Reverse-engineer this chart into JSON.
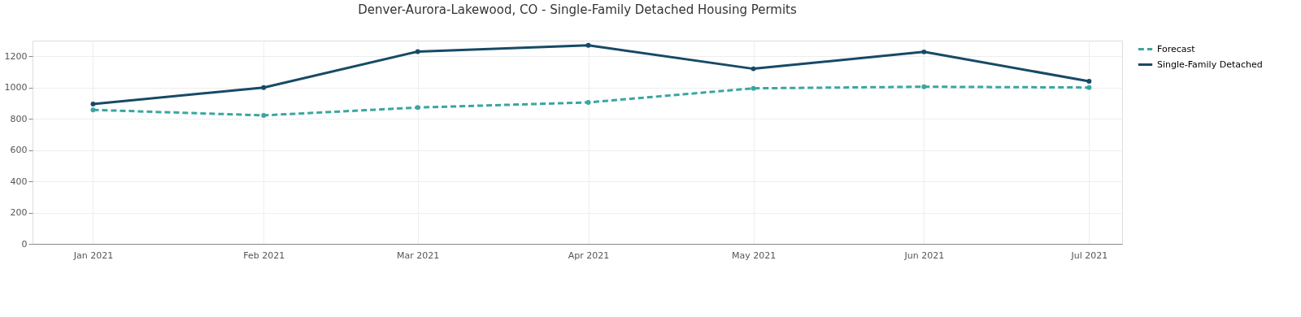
{
  "chart_data": {
    "type": "line",
    "title": "Denver-Aurora-Lakewood, CO - Single-Family Detached Housing Permits",
    "x": [
      "2021-01",
      "2021-02",
      "2021-03",
      "2021-04",
      "2021-05",
      "2021-06",
      "2021-07"
    ],
    "series": [
      {
        "name": "Forecast",
        "color": "#3aa6a0",
        "line_style": "dashed",
        "values": [
          857,
          822,
          872,
          905,
          995,
          1005,
          1000
        ]
      },
      {
        "name": "Single-Family Detached",
        "color": "#174a66",
        "line_style": "solid",
        "values": [
          895,
          1000,
          1230,
          1270,
          1120,
          1228,
          1040
        ]
      }
    ],
    "xlim": [
      "2020-12-21",
      "2021-07-07"
    ],
    "xticks": [
      {
        "value": "2021-01",
        "label": "Jan 2021"
      },
      {
        "value": "2021-02",
        "label": "Feb 2021"
      },
      {
        "value": "2021-03",
        "label": "Mar 2021"
      },
      {
        "value": "2021-04",
        "label": "Apr 2021"
      },
      {
        "value": "2021-05",
        "label": "May 2021"
      },
      {
        "value": "2021-06",
        "label": "Jun 2021"
      },
      {
        "value": "2021-07",
        "label": "Jul 2021"
      }
    ],
    "ylim": [
      0,
      1300
    ],
    "yticks": [
      0,
      200,
      400,
      600,
      800,
      1000,
      1200
    ],
    "grid": true,
    "legend": "top right",
    "marker": "circle"
  }
}
